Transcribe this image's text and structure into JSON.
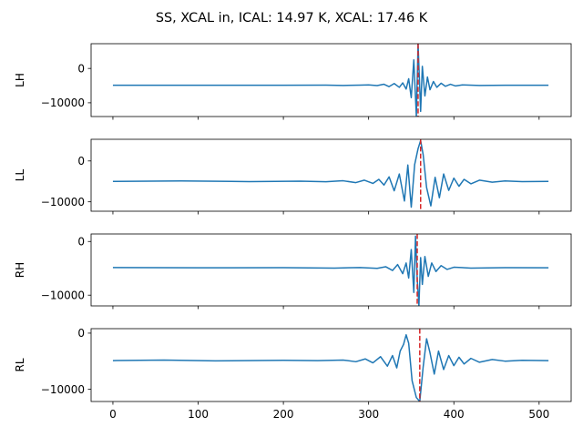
{
  "figure": {
    "title": "SS, XCAL in, ICAL: 14.97 K, XCAL: 17.46 K"
  },
  "chart_data": [
    {
      "type": "line",
      "ylabel": "LH",
      "xlim": [
        -25.6,
        537.6
      ],
      "ylim": [
        -14000,
        7200
      ],
      "yticks": [
        0,
        -10000
      ],
      "ytick_labels": [
        "0",
        "−10000"
      ],
      "xticks": [
        0,
        100,
        200,
        300,
        400,
        500
      ],
      "xtick_labels": [],
      "baseline": -4900,
      "center": 357,
      "series": [
        {
          "color": "#1f77b4",
          "points": [
            [
              0,
              -4900
            ],
            [
              100,
              -4880
            ],
            [
              200,
              -4900
            ],
            [
              250,
              -4870
            ],
            [
              270,
              -4950
            ],
            [
              290,
              -4850
            ],
            [
              300,
              -4800
            ],
            [
              310,
              -5000
            ],
            [
              318,
              -4600
            ],
            [
              324,
              -5300
            ],
            [
              330,
              -4400
            ],
            [
              336,
              -5500
            ],
            [
              340,
              -4200
            ],
            [
              344,
              -6000
            ],
            [
              347,
              -3000
            ],
            [
              350,
              -8500
            ],
            [
              353,
              2500
            ],
            [
              356,
              -14000
            ],
            [
              358,
              7200
            ],
            [
              361,
              -12500
            ],
            [
              363,
              600
            ],
            [
              366,
              -8000
            ],
            [
              369,
              -2500
            ],
            [
              372,
              -6200
            ],
            [
              376,
              -3800
            ],
            [
              380,
              -5500
            ],
            [
              385,
              -4300
            ],
            [
              390,
              -5200
            ],
            [
              396,
              -4600
            ],
            [
              402,
              -5100
            ],
            [
              410,
              -4800
            ],
            [
              430,
              -4950
            ],
            [
              460,
              -4880
            ],
            [
              511,
              -4900
            ]
          ]
        }
      ],
      "marker": {
        "x": 358,
        "color": "#d62728"
      }
    },
    {
      "type": "line",
      "ylabel": "LL",
      "xlim": [
        -25.6,
        537.6
      ],
      "ylim": [
        -12300,
        5300
      ],
      "yticks": [
        0,
        -10000
      ],
      "ytick_labels": [
        "0",
        "−10000"
      ],
      "xticks": [
        0,
        100,
        200,
        300,
        400,
        500
      ],
      "xtick_labels": [],
      "baseline": -5000,
      "center": 361,
      "series": [
        {
          "color": "#1f77b4",
          "points": [
            [
              0,
              -5000
            ],
            [
              80,
              -4900
            ],
            [
              160,
              -5050
            ],
            [
              220,
              -4950
            ],
            [
              250,
              -5100
            ],
            [
              270,
              -4850
            ],
            [
              285,
              -5300
            ],
            [
              295,
              -4700
            ],
            [
              305,
              -5500
            ],
            [
              312,
              -4500
            ],
            [
              318,
              -5900
            ],
            [
              324,
              -3900
            ],
            [
              330,
              -7300
            ],
            [
              336,
              -3200
            ],
            [
              342,
              -9800
            ],
            [
              346,
              -1000
            ],
            [
              350,
              -11300
            ],
            [
              354,
              -900
            ],
            [
              358,
              3000
            ],
            [
              361,
              5000
            ],
            [
              364,
              1500
            ],
            [
              368,
              -6500
            ],
            [
              373,
              -11000
            ],
            [
              378,
              -4000
            ],
            [
              383,
              -9000
            ],
            [
              388,
              -3200
            ],
            [
              394,
              -7200
            ],
            [
              400,
              -4200
            ],
            [
              406,
              -6200
            ],
            [
              412,
              -4500
            ],
            [
              420,
              -5600
            ],
            [
              430,
              -4700
            ],
            [
              445,
              -5200
            ],
            [
              460,
              -4900
            ],
            [
              480,
              -5050
            ],
            [
              511,
              -5000
            ]
          ]
        }
      ],
      "marker": {
        "x": 361,
        "color": "#d62728"
      }
    },
    {
      "type": "line",
      "ylabel": "RH",
      "xlim": [
        -25.6,
        537.6
      ],
      "ylim": [
        -12000,
        1400
      ],
      "yticks": [
        0,
        -10000
      ],
      "ytick_labels": [
        "0",
        "−10000"
      ],
      "xticks": [
        0,
        100,
        200,
        300,
        400,
        500
      ],
      "xtick_labels": [],
      "baseline": -4900,
      "center": 357,
      "series": [
        {
          "color": "#1f77b4",
          "points": [
            [
              0,
              -4850
            ],
            [
              100,
              -4900
            ],
            [
              200,
              -4880
            ],
            [
              260,
              -4950
            ],
            [
              290,
              -4850
            ],
            [
              310,
              -5000
            ],
            [
              320,
              -4700
            ],
            [
              328,
              -5400
            ],
            [
              334,
              -4300
            ],
            [
              340,
              -6000
            ],
            [
              344,
              -4000
            ],
            [
              347,
              -6800
            ],
            [
              350,
              -1500
            ],
            [
              353,
              -9500
            ],
            [
              355,
              1000
            ],
            [
              357,
              -7000
            ],
            [
              359,
              -12000
            ],
            [
              361,
              -3000
            ],
            [
              363,
              -8000
            ],
            [
              366,
              -2800
            ],
            [
              370,
              -6500
            ],
            [
              374,
              -4000
            ],
            [
              379,
              -5600
            ],
            [
              385,
              -4500
            ],
            [
              392,
              -5200
            ],
            [
              400,
              -4800
            ],
            [
              420,
              -4950
            ],
            [
              460,
              -4880
            ],
            [
              511,
              -4900
            ]
          ]
        }
      ],
      "marker": {
        "x": 357,
        "color": "#d62728"
      }
    },
    {
      "type": "line",
      "ylabel": "RL",
      "xlim": [
        -25.6,
        537.6
      ],
      "ylim": [
        -12200,
        800
      ],
      "yticks": [
        0,
        -10000
      ],
      "ytick_labels": [
        "0",
        "−10000"
      ],
      "xticks": [
        0,
        100,
        200,
        300,
        400,
        500
      ],
      "xtick_labels": [
        "0",
        "100",
        "200",
        "300",
        "400",
        "500"
      ],
      "baseline": -4900,
      "center": 360,
      "series": [
        {
          "color": "#1f77b4",
          "points": [
            [
              0,
              -4900
            ],
            [
              60,
              -4800
            ],
            [
              120,
              -4950
            ],
            [
              200,
              -4850
            ],
            [
              240,
              -4900
            ],
            [
              270,
              -4800
            ],
            [
              285,
              -5100
            ],
            [
              296,
              -4600
            ],
            [
              305,
              -5300
            ],
            [
              314,
              -4200
            ],
            [
              322,
              -5900
            ],
            [
              328,
              -4000
            ],
            [
              333,
              -6200
            ],
            [
              337,
              -3200
            ],
            [
              341,
              -2000
            ],
            [
              344,
              -300
            ],
            [
              347,
              -1800
            ],
            [
              351,
              -8500
            ],
            [
              356,
              -11500
            ],
            [
              360,
              -12200
            ],
            [
              364,
              -6000
            ],
            [
              368,
              -1000
            ],
            [
              372,
              -3500
            ],
            [
              377,
              -7300
            ],
            [
              382,
              -3200
            ],
            [
              388,
              -6500
            ],
            [
              394,
              -4000
            ],
            [
              400,
              -5800
            ],
            [
              406,
              -4300
            ],
            [
              412,
              -5500
            ],
            [
              420,
              -4500
            ],
            [
              430,
              -5200
            ],
            [
              445,
              -4700
            ],
            [
              460,
              -5000
            ],
            [
              480,
              -4850
            ],
            [
              511,
              -4900
            ]
          ]
        }
      ],
      "marker": {
        "x": 360,
        "color": "#d62728"
      }
    }
  ]
}
